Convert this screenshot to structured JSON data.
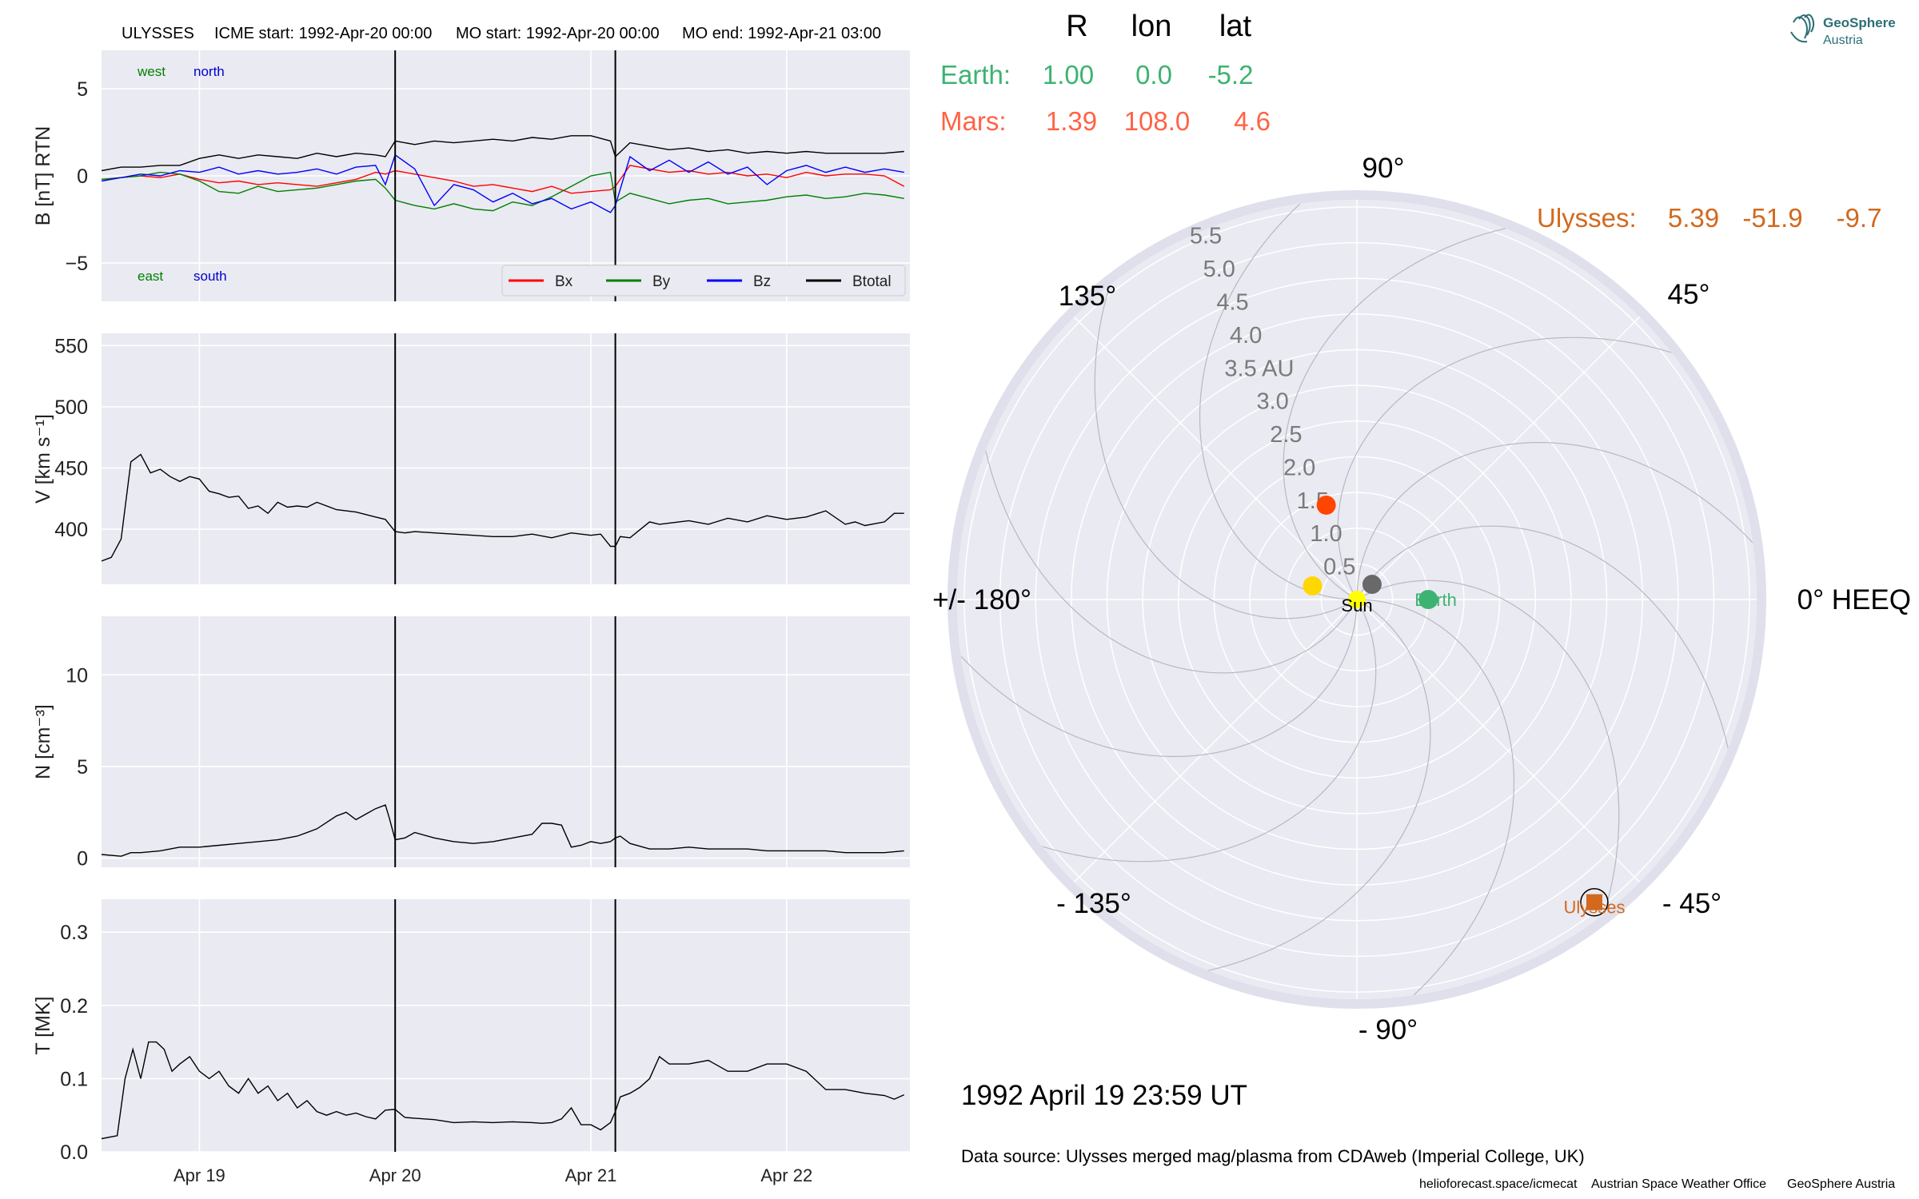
{
  "header": {
    "spacecraft": "ULYSSES",
    "icme_start": "ICME start: 1992-Apr-20 00:00",
    "mo_start": "MO start: 1992-Apr-20 00:00",
    "mo_end": "MO end: 1992-Apr-21 03:00"
  },
  "logo": {
    "line1": "GeoSphere",
    "line2": "Austria"
  },
  "position_table": {
    "headers": [
      "R",
      "lon",
      "lat"
    ],
    "rows": [
      {
        "name": "Earth:",
        "R": "1.00",
        "lon": "0.0",
        "lat": "-5.2",
        "color": "#3cb371"
      },
      {
        "name": "Mars:",
        "R": "1.39",
        "lon": "108.0",
        "lat": "4.6",
        "color": "#ff6347"
      }
    ],
    "ulysses": {
      "name": "Ulysses:",
      "R": "5.39",
      "lon": "-51.9",
      "lat": "-9.7",
      "color": "#d2691e"
    }
  },
  "date_label": "1992 April 19  23:59 UT",
  "data_source": "Data source: Ulysses merged mag/plasma from CDAweb (Imperial College, UK)",
  "footer_links": [
    "helioforecast.space/icmecat",
    "Austrian Space Weather Office",
    "GeoSphere Austria"
  ],
  "colors": {
    "panel_bg": "#eaeaf2",
    "grid": "#ffffff",
    "Bx": "#ff0000",
    "By": "#008000",
    "Bz": "#0000ff",
    "Btotal": "#000000"
  },
  "chart_data": [
    {
      "type": "line",
      "ylabel": "B [nT] RTN",
      "ylim": [
        -7.2,
        7.2
      ],
      "yticks": [
        5,
        0,
        -5
      ],
      "ytick_labels": [
        "5",
        "0",
        "−5"
      ],
      "xlim_days": [
        18.5,
        22.63
      ],
      "xticks_days": [
        19,
        20,
        21,
        22
      ],
      "event_lines_days": [
        20.0,
        21.125
      ],
      "annotations": {
        "west": "west",
        "north": "north",
        "east": "east",
        "south": "south"
      },
      "legend": {
        "placement": "lower right",
        "labels": [
          "Bx",
          "By",
          "Bz",
          "Btotal"
        ]
      },
      "series": [
        {
          "name": "Bx",
          "x": [
            18.5,
            18.6,
            18.7,
            18.8,
            18.9,
            19.0,
            19.1,
            19.2,
            19.3,
            19.4,
            19.5,
            19.6,
            19.7,
            19.8,
            19.9,
            19.95,
            20.0,
            20.1,
            20.2,
            20.3,
            20.4,
            20.5,
            20.6,
            20.7,
            20.8,
            20.9,
            21.0,
            21.1,
            21.125,
            21.2,
            21.3,
            21.4,
            21.5,
            21.6,
            21.7,
            21.8,
            21.9,
            22.0,
            22.1,
            22.2,
            22.3,
            22.4,
            22.5,
            22.6
          ],
          "y": [
            -0.2,
            -0.1,
            0.0,
            -0.1,
            0.1,
            -0.2,
            -0.4,
            -0.3,
            -0.5,
            -0.4,
            -0.5,
            -0.6,
            -0.4,
            -0.2,
            0.2,
            0.1,
            0.3,
            0.1,
            -0.1,
            -0.3,
            -0.6,
            -0.5,
            -0.7,
            -0.9,
            -0.6,
            -1.0,
            -0.9,
            -0.8,
            -0.6,
            0.6,
            0.4,
            0.2,
            0.3,
            0.1,
            0.2,
            0.0,
            0.1,
            -0.1,
            0.2,
            0.0,
            0.1,
            0.1,
            0.0,
            -0.6
          ]
        },
        {
          "name": "By",
          "x": [
            18.5,
            18.6,
            18.7,
            18.8,
            18.9,
            19.0,
            19.1,
            19.2,
            19.3,
            19.4,
            19.5,
            19.6,
            19.7,
            19.8,
            19.9,
            19.95,
            20.0,
            20.1,
            20.2,
            20.3,
            20.4,
            20.5,
            20.6,
            20.7,
            20.8,
            20.9,
            21.0,
            21.1,
            21.125,
            21.2,
            21.3,
            21.4,
            21.5,
            21.6,
            21.7,
            21.8,
            21.9,
            22.0,
            22.1,
            22.2,
            22.3,
            22.4,
            22.5,
            22.6
          ],
          "y": [
            -0.2,
            -0.1,
            0.0,
            0.2,
            0.1,
            -0.3,
            -0.9,
            -1.0,
            -0.6,
            -0.9,
            -0.8,
            -0.7,
            -0.5,
            -0.3,
            -0.2,
            -0.7,
            -1.4,
            -1.7,
            -1.9,
            -1.6,
            -1.9,
            -2.0,
            -1.5,
            -1.7,
            -1.2,
            -0.6,
            0.0,
            0.2,
            -1.5,
            -1.0,
            -1.3,
            -1.6,
            -1.4,
            -1.3,
            -1.6,
            -1.5,
            -1.4,
            -1.2,
            -1.1,
            -1.3,
            -1.2,
            -1.0,
            -1.1,
            -1.3
          ]
        },
        {
          "name": "Bz",
          "x": [
            18.5,
            18.6,
            18.7,
            18.8,
            18.9,
            19.0,
            19.1,
            19.2,
            19.3,
            19.4,
            19.5,
            19.6,
            19.7,
            19.8,
            19.9,
            19.95,
            20.0,
            20.1,
            20.2,
            20.3,
            20.4,
            20.5,
            20.6,
            20.7,
            20.8,
            20.9,
            21.0,
            21.1,
            21.125,
            21.2,
            21.3,
            21.4,
            21.5,
            21.6,
            21.7,
            21.8,
            21.9,
            22.0,
            22.1,
            22.2,
            22.3,
            22.4,
            22.5,
            22.6
          ],
          "y": [
            -0.3,
            -0.1,
            0.1,
            0.0,
            0.3,
            0.2,
            0.5,
            0.1,
            0.3,
            0.1,
            0.2,
            0.4,
            0.1,
            0.5,
            0.6,
            -0.5,
            1.2,
            0.4,
            -1.7,
            -0.5,
            -0.8,
            -1.5,
            -1.0,
            -1.6,
            -1.3,
            -1.9,
            -1.5,
            -2.1,
            -1.7,
            1.1,
            0.3,
            0.9,
            0.2,
            0.8,
            0.1,
            0.5,
            -0.5,
            0.3,
            0.6,
            0.2,
            0.5,
            0.2,
            0.4,
            0.2
          ]
        },
        {
          "name": "Btotal",
          "x": [
            18.5,
            18.6,
            18.7,
            18.8,
            18.9,
            19.0,
            19.1,
            19.2,
            19.3,
            19.4,
            19.5,
            19.6,
            19.7,
            19.8,
            19.9,
            19.95,
            20.0,
            20.1,
            20.2,
            20.3,
            20.4,
            20.5,
            20.6,
            20.7,
            20.8,
            20.9,
            21.0,
            21.1,
            21.125,
            21.2,
            21.3,
            21.4,
            21.5,
            21.6,
            21.7,
            21.8,
            21.9,
            22.0,
            22.1,
            22.2,
            22.3,
            22.4,
            22.5,
            22.6
          ],
          "y": [
            0.3,
            0.5,
            0.5,
            0.6,
            0.6,
            1.0,
            1.2,
            1.0,
            1.2,
            1.1,
            1.0,
            1.3,
            1.1,
            1.3,
            1.2,
            1.1,
            2.0,
            1.8,
            2.0,
            1.9,
            2.0,
            2.1,
            2.0,
            2.2,
            2.1,
            2.3,
            2.3,
            2.0,
            1.1,
            1.9,
            1.7,
            1.5,
            1.6,
            1.4,
            1.5,
            1.3,
            1.4,
            1.3,
            1.4,
            1.3,
            1.3,
            1.3,
            1.3,
            1.4
          ]
        }
      ]
    },
    {
      "type": "line",
      "ylabel": "V [km s⁻¹]",
      "ylim": [
        355,
        560
      ],
      "yticks": [
        550,
        500,
        450,
        400
      ],
      "ytick_labels": [
        "550",
        "500",
        "450",
        "400"
      ],
      "xlim_days": [
        18.5,
        22.63
      ],
      "xticks_days": [
        19,
        20,
        21,
        22
      ],
      "event_lines_days": [
        20.0,
        21.125
      ],
      "series": [
        {
          "name": "",
          "x": [
            18.5,
            18.55,
            18.6,
            18.65,
            18.7,
            18.75,
            18.8,
            18.85,
            18.9,
            18.95,
            19.0,
            19.05,
            19.1,
            19.15,
            19.2,
            19.25,
            19.3,
            19.35,
            19.4,
            19.45,
            19.5,
            19.55,
            19.6,
            19.7,
            19.8,
            19.9,
            19.95,
            20.0,
            20.05,
            20.1,
            20.2,
            20.3,
            20.4,
            20.5,
            20.6,
            20.7,
            20.8,
            20.9,
            21.0,
            21.05,
            21.1,
            21.125,
            21.15,
            21.2,
            21.3,
            21.35,
            21.4,
            21.5,
            21.6,
            21.7,
            21.8,
            21.9,
            22.0,
            22.1,
            22.2,
            22.3,
            22.35,
            22.4,
            22.5,
            22.55,
            22.6
          ],
          "y": [
            374,
            377,
            392,
            455,
            461,
            446,
            449,
            443,
            439,
            443,
            441,
            431,
            429,
            426,
            427,
            417,
            419,
            413,
            422,
            418,
            419,
            418,
            422,
            416,
            414,
            410,
            408,
            398,
            397,
            398,
            397,
            396,
            395,
            394,
            394,
            396,
            393,
            397,
            395,
            396,
            386,
            386,
            394,
            393,
            406,
            404,
            405,
            407,
            404,
            409,
            406,
            411,
            408,
            410,
            415,
            404,
            406,
            403,
            406,
            413,
            413
          ]
        }
      ]
    },
    {
      "type": "line",
      "ylabel": "N [cm⁻³]",
      "ylim": [
        -0.5,
        13.2
      ],
      "yticks": [
        10,
        5,
        0
      ],
      "ytick_labels": [
        "10",
        "5",
        "0"
      ],
      "xlim_days": [
        18.5,
        22.63
      ],
      "xticks_days": [
        19,
        20,
        21,
        22
      ],
      "event_lines_days": [
        20.0,
        21.125
      ],
      "series": [
        {
          "name": "",
          "x": [
            18.5,
            18.6,
            18.65,
            18.7,
            18.8,
            18.9,
            19.0,
            19.1,
            19.2,
            19.3,
            19.4,
            19.5,
            19.6,
            19.7,
            19.75,
            19.8,
            19.85,
            19.9,
            19.95,
            19.97,
            20.0,
            20.05,
            20.1,
            20.2,
            20.3,
            20.4,
            20.5,
            20.6,
            20.7,
            20.75,
            20.8,
            20.85,
            20.9,
            20.95,
            21.0,
            21.05,
            21.1,
            21.125,
            21.15,
            21.2,
            21.3,
            21.4,
            21.5,
            21.6,
            21.7,
            21.8,
            21.9,
            22.0,
            22.1,
            22.2,
            22.3,
            22.4,
            22.5,
            22.6
          ],
          "y": [
            0.2,
            0.1,
            0.3,
            0.3,
            0.4,
            0.6,
            0.6,
            0.7,
            0.8,
            0.9,
            1.0,
            1.2,
            1.6,
            2.3,
            2.5,
            2.1,
            2.4,
            2.7,
            2.9,
            2.2,
            1.0,
            1.1,
            1.4,
            1.1,
            0.9,
            0.8,
            0.9,
            1.1,
            1.3,
            1.9,
            1.9,
            1.8,
            0.6,
            0.7,
            0.9,
            0.8,
            0.9,
            1.1,
            1.2,
            0.8,
            0.5,
            0.5,
            0.6,
            0.5,
            0.5,
            0.5,
            0.4,
            0.4,
            0.4,
            0.4,
            0.3,
            0.3,
            0.3,
            0.4
          ]
        }
      ]
    },
    {
      "type": "line",
      "ylabel": "T [MK]",
      "ylim": [
        0.0,
        0.345
      ],
      "yticks": [
        0.3,
        0.2,
        0.1,
        0.0
      ],
      "ytick_labels": [
        "0.3",
        "0.2",
        "0.1",
        "0.0"
      ],
      "xlim_days": [
        18.5,
        22.63
      ],
      "xticks_days": [
        19,
        20,
        21,
        22
      ],
      "event_lines_days": [
        20.0,
        21.125
      ],
      "series": [
        {
          "name": "",
          "x": [
            18.5,
            18.58,
            18.62,
            18.66,
            18.7,
            18.74,
            18.78,
            18.82,
            18.86,
            18.9,
            18.95,
            19.0,
            19.05,
            19.1,
            19.15,
            19.2,
            19.25,
            19.3,
            19.35,
            19.4,
            19.45,
            19.5,
            19.55,
            19.6,
            19.65,
            19.7,
            19.75,
            19.8,
            19.85,
            19.9,
            19.95,
            20.0,
            20.05,
            20.1,
            20.2,
            20.3,
            20.4,
            20.5,
            20.6,
            20.7,
            20.75,
            20.8,
            20.85,
            20.9,
            20.95,
            21.0,
            21.05,
            21.1,
            21.125,
            21.15,
            21.2,
            21.25,
            21.3,
            21.35,
            21.4,
            21.5,
            21.6,
            21.7,
            21.8,
            21.9,
            22.0,
            22.1,
            22.2,
            22.3,
            22.4,
            22.5,
            22.55,
            22.6
          ],
          "y": [
            0.018,
            0.022,
            0.1,
            0.14,
            0.1,
            0.15,
            0.15,
            0.14,
            0.11,
            0.12,
            0.13,
            0.11,
            0.1,
            0.11,
            0.09,
            0.08,
            0.1,
            0.08,
            0.09,
            0.07,
            0.08,
            0.06,
            0.07,
            0.055,
            0.05,
            0.055,
            0.05,
            0.053,
            0.048,
            0.045,
            0.057,
            0.058,
            0.047,
            0.046,
            0.044,
            0.04,
            0.041,
            0.04,
            0.041,
            0.04,
            0.039,
            0.04,
            0.045,
            0.06,
            0.037,
            0.037,
            0.03,
            0.04,
            0.055,
            0.075,
            0.08,
            0.088,
            0.1,
            0.13,
            0.12,
            0.12,
            0.125,
            0.11,
            0.11,
            0.12,
            0.12,
            0.11,
            0.085,
            0.085,
            0.08,
            0.077,
            0.072,
            0.078
          ]
        }
      ]
    },
    {
      "type": "scatter",
      "projection": "polar",
      "theta_labels": [
        "0° HEEQ",
        "45°",
        "90°",
        "135°",
        "+/- 180°",
        "- 135°",
        "- 90°",
        "- 45°"
      ],
      "r_tick_labels": [
        "0.5",
        "1.0",
        "1.5",
        "2.0",
        "2.5",
        "3.0",
        "3.5 AU",
        "4.0",
        "4.5",
        "5.0",
        "5.5"
      ],
      "r_ticks": [
        0.5,
        1.0,
        1.5,
        2.0,
        2.5,
        3.0,
        3.5,
        4.0,
        4.5,
        5.0,
        5.5
      ],
      "rlim": [
        0,
        5.6
      ],
      "spiral_count": 12,
      "points": [
        {
          "label": "Sun",
          "r": 0.0,
          "lon_deg": 0,
          "color": "#ffff00",
          "label_color": "#000000"
        },
        {
          "label": "Earth",
          "r": 1.0,
          "lon_deg": 0.0,
          "color": "#3cb371",
          "label_color": "#3cb371"
        },
        {
          "label": "",
          "r": 0.3,
          "lon_deg": 45,
          "color": "#696969"
        },
        {
          "label": "",
          "r": 0.65,
          "lon_deg": 163,
          "color": "#ffd700"
        },
        {
          "label": "",
          "r": 1.39,
          "lon_deg": 108.0,
          "color": "#ff4500"
        },
        {
          "label": "Ulysses",
          "r": 5.39,
          "lon_deg": -51.9,
          "color": "#d2691e",
          "label_color": "#d2691e",
          "marker": "square"
        }
      ]
    }
  ]
}
